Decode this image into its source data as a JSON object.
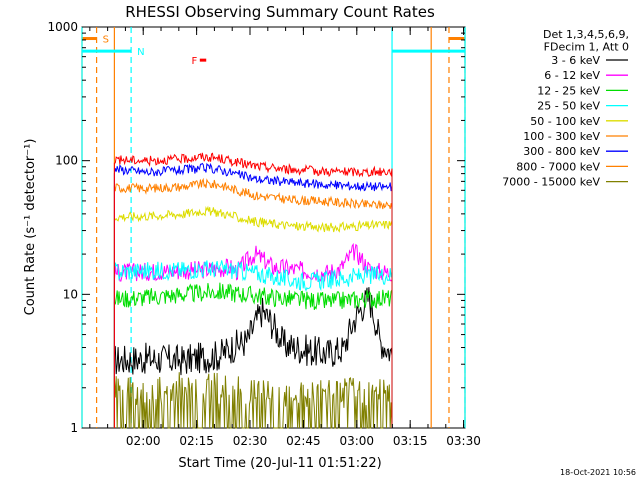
{
  "chart_data": {
    "type": "line",
    "title": "RHESSI Observing Summary Count Rates",
    "xlabel": "Start Time (20-Jul-11 01:51:22)",
    "ylabel": "Count Rate (s⁻¹ detector⁻¹)",
    "yscale": "log",
    "ylim": [
      1,
      1000
    ],
    "xlim_minutes": [
      -8.6,
      99
    ],
    "x_ticks": [
      {
        "min": 8.6,
        "label": "02:00"
      },
      {
        "min": 23.6,
        "label": "02:15"
      },
      {
        "min": 38.6,
        "label": "02:30"
      },
      {
        "min": 53.6,
        "label": "02:45"
      },
      {
        "min": 68.6,
        "label": "03:00"
      },
      {
        "min": 83.6,
        "label": "03:15"
      },
      {
        "min": 98.6,
        "label": "03:30"
      }
    ],
    "y_ticks": [
      {
        "value": 1,
        "label": "1"
      },
      {
        "value": 10,
        "label": "10"
      },
      {
        "value": 100,
        "label": "100"
      },
      {
        "value": 1000,
        "label": "1000"
      }
    ],
    "detector_info": [
      "Det 1,3,4,5,6,9,",
      "FDecim 1, Att 0"
    ],
    "footer_date": "18-Oct-2021 10:56",
    "data_window_minutes": [
      0.5,
      78.5
    ],
    "series": [
      {
        "name": "3 - 6 keV",
        "color": "#000000",
        "x": [
          0,
          10,
          20,
          30,
          35,
          38,
          42,
          44,
          48,
          55,
          60,
          65,
          68,
          72,
          75,
          78.5
        ],
        "y": [
          3.2,
          3.3,
          3.2,
          3.5,
          4.2,
          4.5,
          7.5,
          6.5,
          4.2,
          3.8,
          3.6,
          3.9,
          6.5,
          9.5,
          4.5,
          3.6
        ]
      },
      {
        "name": "6 - 12 keV",
        "color": "#ff00ff",
        "x": [
          0,
          10,
          20,
          30,
          33,
          35,
          40,
          45,
          50,
          55,
          60,
          64,
          68,
          72,
          75,
          78.5
        ],
        "y": [
          14.5,
          14.8,
          15,
          15.5,
          16,
          14.8,
          20,
          16,
          15.5,
          14.8,
          14.5,
          15.5,
          21,
          15.5,
          14.8,
          14.5
        ]
      },
      {
        "name": "12 - 25 keV",
        "color": "#00dd00",
        "x": [
          0,
          10,
          20,
          30,
          40,
          50,
          60,
          70,
          78.5
        ],
        "y": [
          9.2,
          9.5,
          10,
          10.5,
          9.8,
          9.2,
          8.8,
          9.2,
          9.4
        ]
      },
      {
        "name": "25 - 50 keV",
        "color": "#00ffff",
        "x": [
          0,
          10,
          20,
          25,
          30,
          35,
          40,
          45,
          50,
          55,
          60,
          65,
          70,
          78.5
        ],
        "y": [
          14.8,
          15,
          15.2,
          15.5,
          15.5,
          15,
          14.5,
          13.5,
          12.8,
          12.5,
          12.8,
          13.2,
          13.8,
          14
        ]
      },
      {
        "name": "50 - 100 keV",
        "color": "#dddd00",
        "x": [
          0,
          10,
          20,
          25,
          30,
          35,
          40,
          50,
          60,
          70,
          78.5
        ],
        "y": [
          38,
          38.5,
          40,
          42,
          41,
          37.5,
          35,
          32.5,
          31.5,
          32.5,
          33.5
        ]
      },
      {
        "name": "100 - 300 keV",
        "color": "#ff8000",
        "x": [
          0,
          10,
          20,
          25,
          30,
          35,
          40,
          50,
          60,
          70,
          78.5
        ],
        "y": [
          63,
          62,
          64,
          67,
          66,
          60,
          55,
          51,
          49.5,
          47,
          46.5
        ]
      },
      {
        "name": "300 - 800 keV",
        "color": "#0000ff",
        "x": [
          0,
          10,
          20,
          25,
          30,
          35,
          40,
          50,
          60,
          70,
          78.5
        ],
        "y": [
          87,
          82,
          85,
          88,
          86,
          79,
          73,
          69,
          66,
          64.5,
          63.5
        ]
      },
      {
        "name": "800 - 7000 keV",
        "color": "#ff8000",
        "x": [],
        "y": []
      },
      {
        "name": "7000 - 15000 keV",
        "color": "#808000",
        "x": [
          0,
          10,
          20,
          30,
          40,
          50,
          60,
          70,
          78.5
        ],
        "y": [
          1.9,
          1.9,
          2.0,
          2.0,
          1.9,
          1.9,
          1.8,
          1.9,
          1.9
        ]
      },
      {
        "name": "",
        "color": "#ff0000",
        "x": [
          0,
          10,
          20,
          25,
          30,
          35,
          40,
          50,
          60,
          70,
          78.5
        ],
        "y": [
          102,
          100,
          103,
          107,
          104,
          97,
          91,
          86,
          83,
          82,
          83
        ]
      }
    ],
    "spans": [
      {
        "label": "S",
        "color": "#ff8000",
        "lines_min": [
          -8.6,
          0.5,
          89.5,
          99
        ],
        "dashed_min": [
          -4.5,
          94.5
        ],
        "bars": [
          {
            "from": -8.6,
            "to": -4.5
          },
          {
            "from": 94.5,
            "to": 99
          }
        ],
        "bar_y": 820
      },
      {
        "label": "N",
        "color": "#00ffff",
        "lines_min": [
          -8.6,
          78.5,
          99
        ],
        "dashed_min": [
          5.2,
          99
        ],
        "bars": [
          {
            "from": -8.6,
            "to": 5.2
          },
          {
            "from": 78.5,
            "to": 99
          }
        ],
        "bar_y": 660
      },
      {
        "label": "F",
        "color": "#ff0000",
        "lines_min": [],
        "dashed_min": [],
        "bars": [
          {
            "from": 24.5,
            "to": 26.3
          }
        ],
        "bar_y": 565
      }
    ]
  }
}
